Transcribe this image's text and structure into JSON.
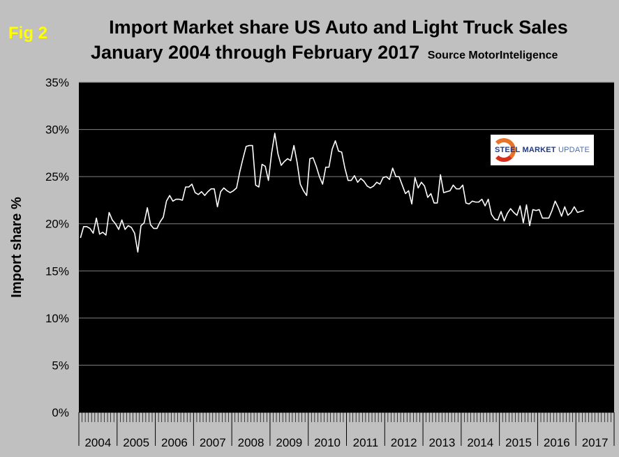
{
  "figure_label": "Fig 2",
  "title_line1": "Import Market share US Auto and Light Truck Sales",
  "title_line2": "January 2004 through February 2017",
  "source_note": "Source MotorInteligence",
  "logo": {
    "bold_text": "STEEL MARKET",
    "light_text": "UPDATE"
  },
  "colors": {
    "plot_background": "#000000",
    "line": "#ffffff",
    "page_background": "#c0c0c0",
    "fig_label": "#ffff00"
  },
  "chart_data": {
    "type": "line",
    "title": "Import Market share US Auto and Light Truck Sales January 2004 through February 2017",
    "xlabel": "",
    "ylabel": "Import share %",
    "ylim": [
      0,
      35
    ],
    "y_ticks": [
      "0%",
      "5%",
      "10%",
      "15%",
      "20%",
      "25%",
      "30%",
      "35%"
    ],
    "y_tick_values": [
      0,
      5,
      10,
      15,
      20,
      25,
      30,
      35
    ],
    "grid": "horizontal",
    "legend": "none",
    "year_labels": [
      "2004",
      "2005",
      "2006",
      "2007",
      "2008",
      "2009",
      "2010",
      "2011",
      "2012",
      "2013",
      "2014",
      "2015",
      "2016",
      "2017"
    ],
    "x_start": "2004-01",
    "x_end": "2017-02",
    "series": [
      {
        "values": [
          18.5,
          19.7,
          19.7,
          19.5,
          19.0,
          20.6,
          18.9,
          19.1,
          18.8,
          21.2,
          20.4,
          20.0,
          19.4,
          20.4,
          19.4,
          19.8,
          19.6,
          19.0,
          17.0,
          19.8,
          20.1,
          21.7,
          19.9,
          19.5,
          19.5,
          20.2,
          20.7,
          22.4,
          23.0,
          22.4,
          22.6,
          22.6,
          22.5,
          23.9,
          23.9,
          24.2,
          23.3,
          23.1,
          23.4,
          23.0,
          23.4,
          23.7,
          23.7,
          21.8,
          23.4,
          23.8,
          23.5,
          23.3,
          23.5,
          23.8,
          25.5,
          26.9,
          28.2,
          28.3,
          28.3,
          24.1,
          23.9,
          26.3,
          26.1,
          24.6,
          27.5,
          29.6,
          27.4,
          26.2,
          26.6,
          26.9,
          26.7,
          28.3,
          26.5,
          24.2,
          23.5,
          23.0,
          26.9,
          27.0,
          26.1,
          25.0,
          24.2,
          26.0,
          26.0,
          27.9,
          28.8,
          27.7,
          27.6,
          25.9,
          24.6,
          24.6,
          25.1,
          24.4,
          24.8,
          24.5,
          24.0,
          23.8,
          24.0,
          24.4,
          24.2,
          24.9,
          25.0,
          24.7,
          25.9,
          25.0,
          25.0,
          24.1,
          23.2,
          23.5,
          22.1,
          24.9,
          23.8,
          24.4,
          24.0,
          22.8,
          23.2,
          22.2,
          22.2,
          25.2,
          23.3,
          23.4,
          23.5,
          24.1,
          23.7,
          23.7,
          24.1,
          22.2,
          22.1,
          22.4,
          22.3,
          22.3,
          22.6,
          21.9,
          22.6,
          21.0,
          20.5,
          20.4,
          21.3,
          20.3,
          21.1,
          21.6,
          21.2,
          20.9,
          21.9,
          20.1,
          22.0,
          19.8,
          21.5,
          21.4,
          21.5,
          20.6,
          20.6,
          20.6,
          21.4,
          22.4,
          21.7,
          20.8,
          21.8,
          20.9,
          21.2,
          21.8,
          21.2,
          21.3,
          21.4
        ]
      }
    ]
  }
}
